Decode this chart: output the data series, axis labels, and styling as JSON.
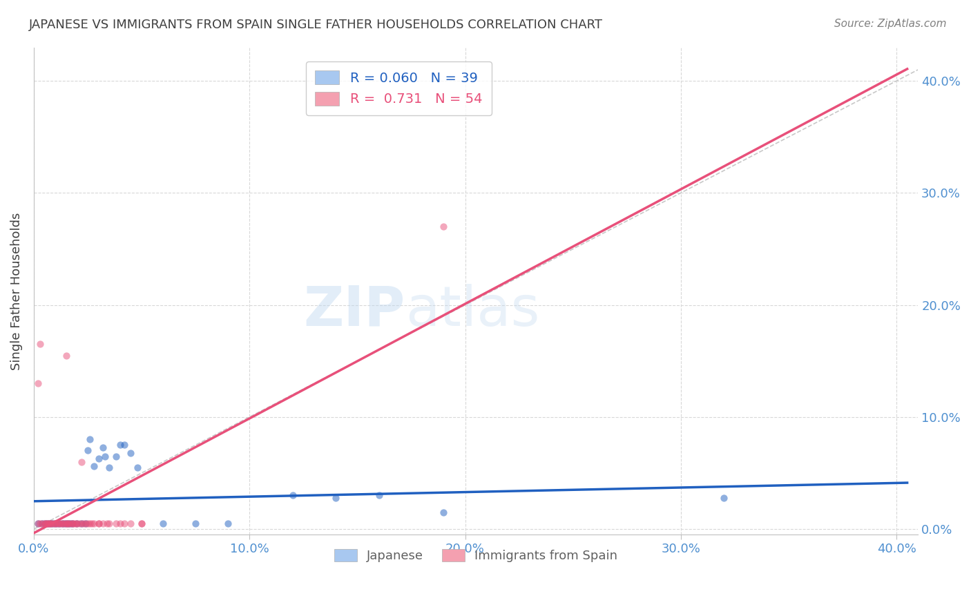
{
  "title": "JAPANESE VS IMMIGRANTS FROM SPAIN SINGLE FATHER HOUSEHOLDS CORRELATION CHART",
  "source": "Source: ZipAtlas.com",
  "ylabel": "Single Father Households",
  "xlim": [
    0.0,
    0.41
  ],
  "ylim": [
    -0.005,
    0.43
  ],
  "xticks": [
    0.0,
    0.1,
    0.2,
    0.3,
    0.4
  ],
  "yticks": [
    0.0,
    0.1,
    0.2,
    0.3,
    0.4
  ],
  "xticklabels": [
    "0.0%",
    "10.0%",
    "20.0%",
    "30.0%",
    "40.0%"
  ],
  "yticklabels": [
    "0.0%",
    "10.0%",
    "20.0%",
    "30.0%",
    "40.0%"
  ],
  "watermark": "ZIPatlas",
  "legend_label1": "Japanese",
  "legend_label2": "Immigrants from Spain",
  "R_japanese": 0.06,
  "N_japanese": 39,
  "R_spain": 0.731,
  "N_spain": 54,
  "japanese_scatter": [
    [
      0.002,
      0.005
    ],
    [
      0.004,
      0.005
    ],
    [
      0.005,
      0.005
    ],
    [
      0.006,
      0.005
    ],
    [
      0.007,
      0.005
    ],
    [
      0.008,
      0.005
    ],
    [
      0.009,
      0.005
    ],
    [
      0.01,
      0.005
    ],
    [
      0.011,
      0.005
    ],
    [
      0.012,
      0.005
    ],
    [
      0.013,
      0.005
    ],
    [
      0.014,
      0.005
    ],
    [
      0.015,
      0.005
    ],
    [
      0.016,
      0.005
    ],
    [
      0.017,
      0.005
    ],
    [
      0.018,
      0.005
    ],
    [
      0.02,
      0.005
    ],
    [
      0.022,
      0.005
    ],
    [
      0.024,
      0.005
    ],
    [
      0.025,
      0.07
    ],
    [
      0.026,
      0.08
    ],
    [
      0.028,
      0.056
    ],
    [
      0.03,
      0.063
    ],
    [
      0.032,
      0.073
    ],
    [
      0.033,
      0.065
    ],
    [
      0.035,
      0.055
    ],
    [
      0.038,
      0.065
    ],
    [
      0.04,
      0.075
    ],
    [
      0.042,
      0.075
    ],
    [
      0.045,
      0.068
    ],
    [
      0.048,
      0.055
    ],
    [
      0.06,
      0.005
    ],
    [
      0.075,
      0.005
    ],
    [
      0.09,
      0.005
    ],
    [
      0.12,
      0.03
    ],
    [
      0.14,
      0.028
    ],
    [
      0.16,
      0.03
    ],
    [
      0.19,
      0.015
    ],
    [
      0.32,
      0.028
    ]
  ],
  "spain_scatter": [
    [
      0.002,
      0.005
    ],
    [
      0.003,
      0.005
    ],
    [
      0.004,
      0.005
    ],
    [
      0.005,
      0.005
    ],
    [
      0.005,
      0.005
    ],
    [
      0.006,
      0.005
    ],
    [
      0.006,
      0.005
    ],
    [
      0.007,
      0.005
    ],
    [
      0.007,
      0.005
    ],
    [
      0.008,
      0.005
    ],
    [
      0.008,
      0.005
    ],
    [
      0.009,
      0.005
    ],
    [
      0.01,
      0.005
    ],
    [
      0.01,
      0.005
    ],
    [
      0.011,
      0.005
    ],
    [
      0.012,
      0.005
    ],
    [
      0.012,
      0.005
    ],
    [
      0.013,
      0.005
    ],
    [
      0.013,
      0.005
    ],
    [
      0.014,
      0.005
    ],
    [
      0.015,
      0.005
    ],
    [
      0.015,
      0.005
    ],
    [
      0.016,
      0.005
    ],
    [
      0.016,
      0.005
    ],
    [
      0.017,
      0.005
    ],
    [
      0.018,
      0.005
    ],
    [
      0.018,
      0.005
    ],
    [
      0.019,
      0.005
    ],
    [
      0.02,
      0.005
    ],
    [
      0.02,
      0.005
    ],
    [
      0.021,
      0.005
    ],
    [
      0.022,
      0.005
    ],
    [
      0.023,
      0.005
    ],
    [
      0.024,
      0.005
    ],
    [
      0.025,
      0.005
    ],
    [
      0.026,
      0.005
    ],
    [
      0.027,
      0.005
    ],
    [
      0.028,
      0.005
    ],
    [
      0.03,
      0.005
    ],
    [
      0.03,
      0.005
    ],
    [
      0.032,
      0.005
    ],
    [
      0.034,
      0.005
    ],
    [
      0.035,
      0.005
    ],
    [
      0.038,
      0.005
    ],
    [
      0.04,
      0.005
    ],
    [
      0.042,
      0.005
    ],
    [
      0.045,
      0.005
    ],
    [
      0.05,
      0.005
    ],
    [
      0.002,
      0.13
    ],
    [
      0.003,
      0.165
    ],
    [
      0.015,
      0.155
    ],
    [
      0.022,
      0.06
    ],
    [
      0.19,
      0.27
    ],
    [
      0.05,
      0.005
    ]
  ],
  "japanese_line_color": "#2060c0",
  "spain_line_color": "#e8507a",
  "diagonal_color": "#c8c8c8",
  "grid_color": "#d8d8d8",
  "title_color": "#404040",
  "source_color": "#808080",
  "axis_label_color": "#404040",
  "tick_color": "#5090d0",
  "background_color": "#ffffff",
  "scatter_alpha": 0.5,
  "scatter_size": 55
}
